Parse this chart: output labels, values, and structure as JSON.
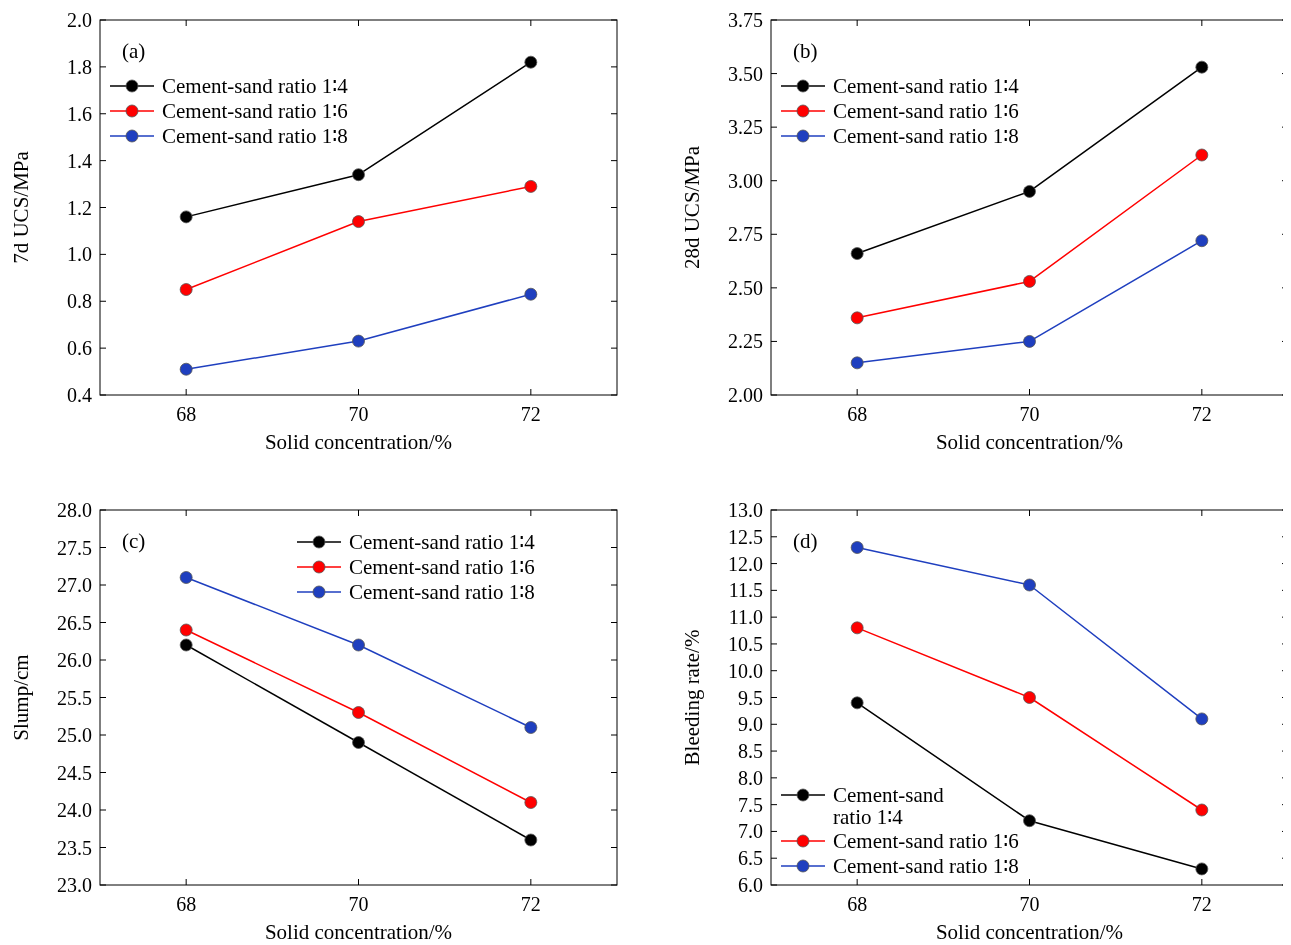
{
  "chart_data": [
    {
      "type": "line",
      "title": "(a)",
      "xlabel": "Solid concentration/%",
      "ylabel": "7d UCS/MPa",
      "x": [
        68,
        70,
        72
      ],
      "xlim": [
        67,
        73
      ],
      "xticks": [
        68,
        70,
        72
      ],
      "ylim": [
        0.4,
        2.0
      ],
      "yticks": [
        0.4,
        0.6,
        0.8,
        {
          "value": 1.0,
          "label": "1.0"
        },
        1.2,
        1.4,
        1.6,
        1.8,
        {
          "value": 2.0,
          "label": "2.0"
        }
      ],
      "marker": "circle",
      "legend": "top left",
      "series": [
        {
          "name": "Cement-sand ratio 1∶4",
          "color": "#000000",
          "values": [
            1.16,
            1.34,
            1.82
          ]
        },
        {
          "name": "Cement-sand ratio 1∶6",
          "color": "#ff0000",
          "values": [
            0.85,
            1.14,
            1.29
          ]
        },
        {
          "name": "Cement-sand ratio 1∶8",
          "color": "#1f3fbf",
          "values": [
            0.51,
            0.63,
            0.83
          ]
        }
      ]
    },
    {
      "type": "line",
      "title": "(b)",
      "xlabel": "Solid concentration/%",
      "ylabel": "28d UCS/MPa",
      "x": [
        68,
        70,
        72
      ],
      "xlim": [
        67,
        73
      ],
      "xticks": [
        68,
        70,
        72
      ],
      "ylim": [
        2.0,
        3.75
      ],
      "yticks": [
        {
          "value": 2.0,
          "label": "2.00"
        },
        2.25,
        {
          "value": 2.5,
          "label": "2.50"
        },
        2.75,
        {
          "value": 3.0,
          "label": "3.00"
        },
        3.25,
        {
          "value": 3.5,
          "label": "3.50"
        },
        3.75
      ],
      "marker": "circle",
      "legend": "top left",
      "series": [
        {
          "name": "Cement-sand ratio 1∶4",
          "color": "#000000",
          "values": [
            2.66,
            2.95,
            3.53
          ]
        },
        {
          "name": "Cement-sand ratio 1∶6",
          "color": "#ff0000",
          "values": [
            2.36,
            2.53,
            3.12
          ]
        },
        {
          "name": "Cement-sand ratio 1∶8",
          "color": "#1f3fbf",
          "values": [
            2.15,
            2.25,
            2.72
          ]
        }
      ]
    },
    {
      "type": "line",
      "title": "(c)",
      "xlabel": "Solid concentration/%",
      "ylabel": "Slump/cm",
      "x": [
        68,
        70,
        72
      ],
      "xlim": [
        67,
        73
      ],
      "xticks": [
        68,
        70,
        72
      ],
      "ylim": [
        23,
        28
      ],
      "yticks": [
        {
          "value": 23,
          "label": "23.0"
        },
        23.5,
        {
          "value": 24,
          "label": "24.0"
        },
        24.5,
        {
          "value": 25,
          "label": "25.0"
        },
        25.5,
        {
          "value": 26,
          "label": "26.0"
        },
        26.5,
        {
          "value": 27,
          "label": "27.0"
        },
        27.5,
        {
          "value": 28,
          "label": "28.0"
        }
      ],
      "marker": "circle",
      "legend": "top right",
      "series": [
        {
          "name": "Cement-sand ratio 1∶4",
          "color": "#000000",
          "values": [
            26.2,
            24.9,
            23.6
          ]
        },
        {
          "name": "Cement-sand ratio 1∶6",
          "color": "#ff0000",
          "values": [
            26.4,
            25.3,
            24.1
          ]
        },
        {
          "name": "Cement-sand ratio 1∶8",
          "color": "#1f3fbf",
          "values": [
            27.1,
            26.2,
            25.1
          ]
        }
      ]
    },
    {
      "type": "line",
      "title": "(d)",
      "xlabel": "Solid concentration/%",
      "ylabel": "Bleeding rate/%",
      "x": [
        68,
        70,
        72
      ],
      "xlim": [
        67,
        73
      ],
      "xticks": [
        68,
        70,
        72
      ],
      "ylim": [
        6,
        13
      ],
      "yticks": [
        {
          "value": 6,
          "label": "6.0"
        },
        6.5,
        {
          "value": 7,
          "label": "7.0"
        },
        7.5,
        {
          "value": 8,
          "label": "8.0"
        },
        8.5,
        {
          "value": 9,
          "label": "9.0"
        },
        9.5,
        {
          "value": 10,
          "label": "10.0"
        },
        10.5,
        {
          "value": 11,
          "label": "11.0"
        },
        11.5,
        {
          "value": 12,
          "label": "12.0"
        },
        12.5,
        {
          "value": 13,
          "label": "13.0"
        }
      ],
      "marker": "circle",
      "legend": "bottom left",
      "series": [
        {
          "name": "Cement-sand ratio 1∶4",
          "color": "#000000",
          "values": [
            9.4,
            7.2,
            6.3
          ]
        },
        {
          "name": "Cement-sand ratio 1∶6",
          "color": "#ff0000",
          "values": [
            10.8,
            9.5,
            7.4
          ]
        },
        {
          "name": "Cement-sand ratio 1∶8",
          "color": "#1f3fbf",
          "values": [
            12.3,
            11.6,
            9.1
          ]
        }
      ]
    }
  ]
}
